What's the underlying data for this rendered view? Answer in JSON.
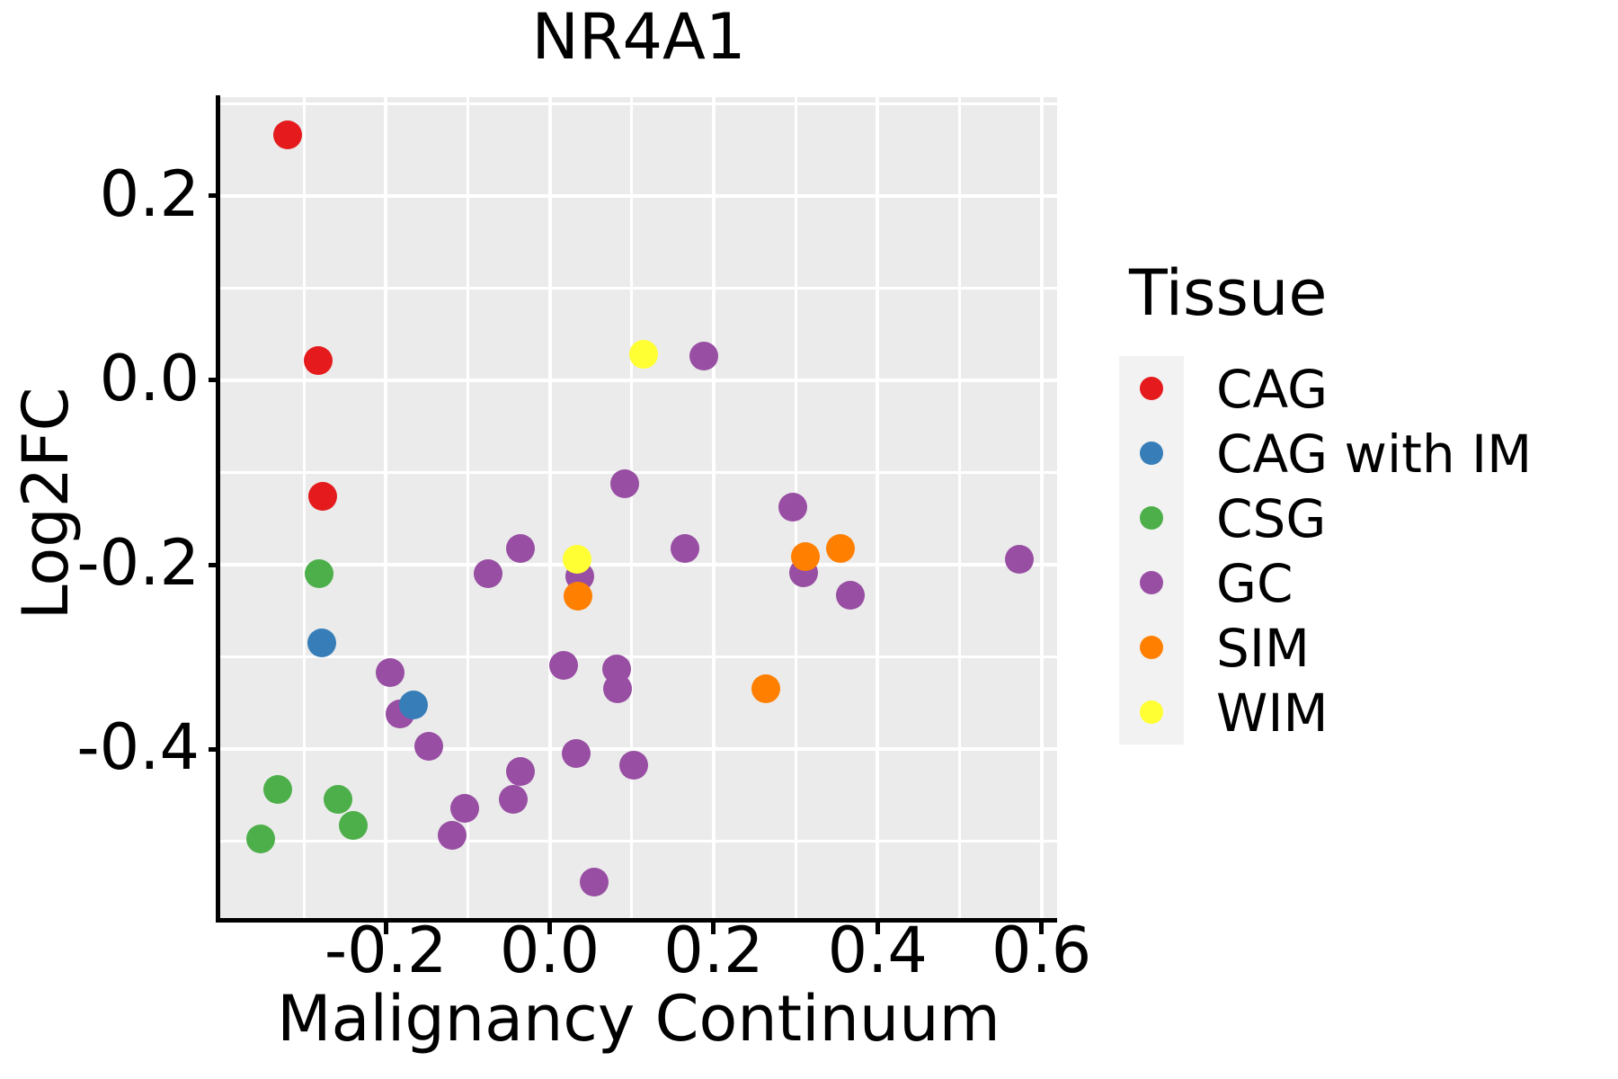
{
  "page": {
    "background": "#FFFFFF"
  },
  "chart_data": {
    "type": "scatter",
    "title": "NR4A1",
    "xlabel": "Malignancy Continuum",
    "ylabel": "Log2FC",
    "xlim": [
      -0.402,
      0.619
    ],
    "ylim": [
      -0.584,
      0.307
    ],
    "x_ticks": {
      "values": [
        -0.2,
        0.0,
        0.2,
        0.4,
        0.6
      ],
      "labels": [
        "-0.2",
        "0.0",
        "0.2",
        "0.4",
        "0.6"
      ]
    },
    "y_ticks": {
      "values": [
        0.2,
        0.0,
        -0.2,
        -0.4
      ],
      "labels": [
        "0.2",
        "0.0",
        "-0.2",
        "-0.4"
      ]
    },
    "grid": {
      "on": true,
      "step": 0.1,
      "color": "#FFFFFF"
    },
    "panel_bg": "#EBEBEB",
    "axis_color": "#000000",
    "point_radius_px": 16,
    "legend": {
      "title": "Tissue",
      "position": "right",
      "key_bg": "#F2F2F2",
      "entries": [
        {
          "label": "CAG",
          "color": "#E41A1C"
        },
        {
          "label": "CAG with IM",
          "color": "#377EB8"
        },
        {
          "label": "CSG",
          "color": "#4DAF4A"
        },
        {
          "label": "GC",
          "color": "#984EA3"
        },
        {
          "label": "SIM",
          "color": "#FF7F00"
        },
        {
          "label": "WIM",
          "color": "#FFFF33"
        }
      ]
    },
    "series": [
      {
        "name": "GC",
        "color": "#984EA3",
        "points": [
          [
            0.092,
            -0.112
          ],
          [
            0.188,
            0.026
          ],
          [
            -0.195,
            -0.317
          ],
          [
            -0.183,
            -0.362
          ],
          [
            -0.148,
            -0.397
          ],
          [
            -0.075,
            -0.21
          ],
          [
            -0.036,
            -0.182
          ],
          [
            0.037,
            -0.213
          ],
          [
            0.017,
            -0.309
          ],
          [
            0.082,
            -0.313
          ],
          [
            0.083,
            -0.334
          ],
          [
            0.032,
            -0.405
          ],
          [
            0.103,
            -0.417
          ],
          [
            -0.036,
            -0.424
          ],
          [
            -0.044,
            -0.454
          ],
          [
            -0.104,
            -0.464
          ],
          [
            -0.119,
            -0.493
          ],
          [
            0.054,
            -0.544
          ],
          [
            0.297,
            -0.138
          ],
          [
            0.165,
            -0.182
          ],
          [
            0.31,
            -0.209
          ],
          [
            0.367,
            -0.233
          ],
          [
            0.573,
            -0.194
          ]
        ]
      },
      {
        "name": "CAG",
        "color": "#E41A1C",
        "points": [
          [
            -0.32,
            0.266
          ],
          [
            -0.282,
            0.021
          ],
          [
            -0.277,
            -0.126
          ]
        ]
      },
      {
        "name": "CSG",
        "color": "#4DAF4A",
        "points": [
          [
            -0.281,
            -0.21
          ],
          [
            -0.332,
            -0.444
          ],
          [
            -0.258,
            -0.454
          ],
          [
            -0.24,
            -0.483
          ],
          [
            -0.353,
            -0.497
          ]
        ]
      },
      {
        "name": "CAG with IM",
        "color": "#377EB8",
        "points": [
          [
            -0.278,
            -0.285
          ],
          [
            -0.166,
            -0.352
          ]
        ]
      },
      {
        "name": "SIM",
        "color": "#FF7F00",
        "points": [
          [
            0.034,
            -0.234
          ],
          [
            0.312,
            -0.191
          ],
          [
            0.355,
            -0.182
          ],
          [
            0.264,
            -0.334
          ]
        ]
      },
      {
        "name": "WIM",
        "color": "#FFFF33",
        "points": [
          [
            0.114,
            0.028
          ],
          [
            0.033,
            -0.194
          ]
        ]
      }
    ]
  }
}
